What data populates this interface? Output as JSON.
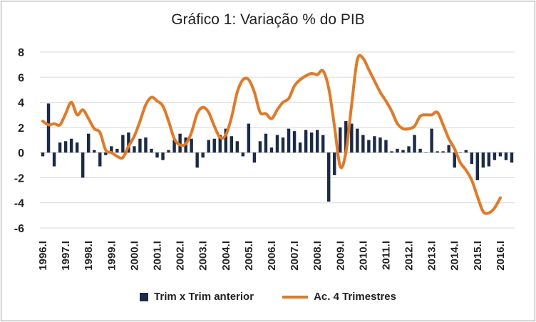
{
  "chart_data": {
    "type": "bar+line",
    "title": "Gráfico 1: Variação % do PIB",
    "ylim": [
      -6,
      8
    ],
    "yticks": [
      -6,
      -4,
      -2,
      0,
      2,
      4,
      6,
      8
    ],
    "xtick_labels": [
      "1996.I",
      "1997.I",
      "1998.I",
      "1999.I",
      "2000.I",
      "2001.I",
      "2002.I",
      "2003.I",
      "2004.I",
      "2005.I",
      "2006.I",
      "2007.I",
      "2008.I",
      "2009.I",
      "2010.I",
      "2011.I",
      "2012.I",
      "2013.I",
      "2014.I",
      "2015.I",
      "2016.I"
    ],
    "series": [
      {
        "name": "Trim x Trim anterior",
        "kind": "bar",
        "color": "#1a2b4a",
        "values": [
          -0.3,
          3.9,
          -1.1,
          0.8,
          0.9,
          1.1,
          0.8,
          -2.0,
          1.5,
          0.2,
          -1.1,
          -0.2,
          0.5,
          0.3,
          1.4,
          1.6,
          0.5,
          1.1,
          1.2,
          0.3,
          -0.4,
          -0.6,
          0.2,
          1.0,
          1.5,
          1.2,
          1.1,
          -1.2,
          -0.4,
          1.0,
          1.1,
          1.4,
          1.9,
          1.3,
          0.9,
          -0.3,
          2.3,
          -0.8,
          0.9,
          1.5,
          0.4,
          1.4,
          1.2,
          1.9,
          1.7,
          0.8,
          1.8,
          1.6,
          1.8,
          1.4,
          -3.9,
          -1.8,
          2.0,
          2.5,
          2.3,
          1.9,
          1.4,
          1.0,
          1.3,
          1.2,
          1.0,
          0.1,
          0.3,
          0.2,
          0.5,
          1.4,
          0.3,
          0.0,
          1.9,
          0.1,
          0.1,
          0.6,
          -1.2,
          0.0,
          0.2,
          -0.9,
          -2.2,
          -1.2,
          -1.1,
          -0.6,
          -0.3,
          -0.6,
          -0.8
        ]
      },
      {
        "name": "Ac. 4 Trimestres",
        "kind": "line",
        "color": "#e87722",
        "values": [
          2.5,
          2.2,
          2.3,
          2.2,
          3.1,
          4.0,
          3.0,
          3.4,
          2.7,
          1.9,
          1.6,
          0.2,
          0.0,
          -0.3,
          -0.4,
          0.5,
          1.3,
          2.5,
          3.8,
          4.4,
          4.1,
          3.7,
          2.5,
          1.1,
          0.6,
          0.7,
          1.6,
          3.1,
          3.6,
          3.2,
          2.1,
          1.2,
          1.4,
          2.8,
          4.8,
          5.8,
          5.8,
          4.8,
          3.2,
          3.1,
          2.7,
          3.4,
          4.0,
          4.3,
          5.3,
          5.8,
          6.1,
          6.3,
          6.2,
          6.5,
          5.1,
          2.1,
          -1.1,
          0.0,
          3.8,
          7.4,
          7.5,
          6.6,
          5.7,
          4.8,
          4.1,
          3.3,
          2.3,
          1.9,
          1.9,
          2.1,
          2.9,
          3.0,
          3.0,
          3.2,
          2.2,
          1.1,
          0.3,
          -0.8,
          -1.4,
          -2.2,
          -3.5,
          -4.7,
          -4.8,
          -4.4,
          -3.6
        ]
      }
    ],
    "legend_position": "bottom",
    "grid": true
  }
}
